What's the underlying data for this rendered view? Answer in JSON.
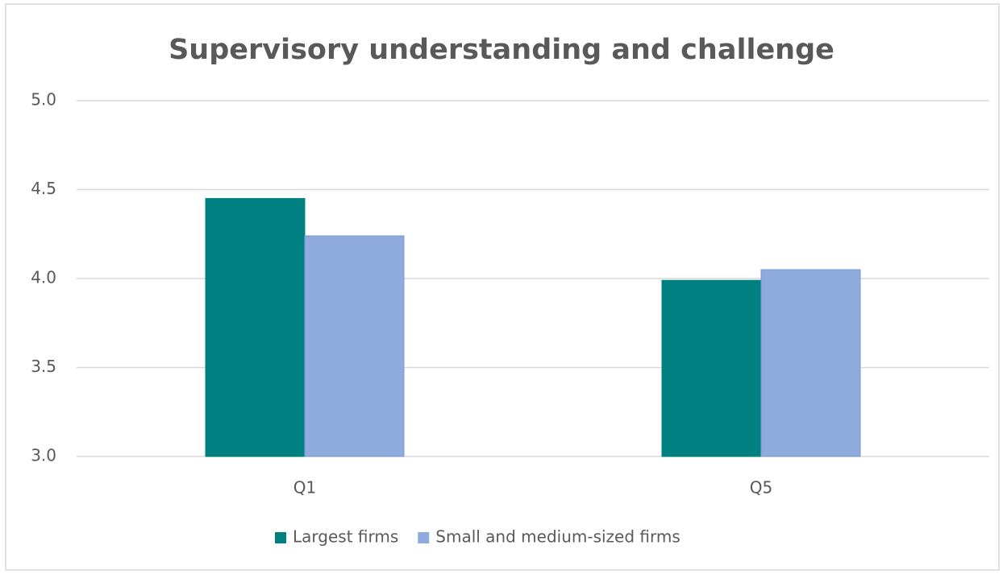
{
  "chart_data": {
    "type": "bar",
    "title": "Supervisory understanding and challenge",
    "categories": [
      "Q1",
      "Q5"
    ],
    "series": [
      {
        "name": "Largest firms",
        "color": "#008080",
        "values": [
          4.45,
          3.99
        ]
      },
      {
        "name": "Small and medium-sized firms",
        "color": "#8faadc",
        "values": [
          4.24,
          4.05
        ]
      }
    ],
    "ylim": [
      3,
      5
    ],
    "yticks": [
      {
        "value": 3,
        "label": "3.0"
      },
      3.5,
      {
        "value": 4,
        "label": "4.0"
      },
      4.5,
      {
        "value": 5,
        "label": "5.0"
      }
    ],
    "grid": true,
    "legend": "bottom"
  }
}
